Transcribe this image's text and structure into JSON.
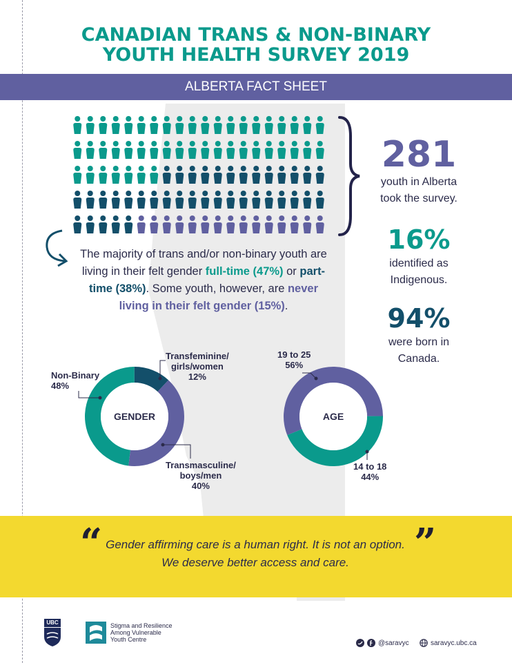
{
  "header": {
    "title_line1": "CANADIAN TRANS & NON-BINARY",
    "title_line2": "YOUTH HEALTH SURVEY 2019",
    "banner": "ALBERTA FACT SHEET"
  },
  "colors": {
    "teal": "#0a9a8c",
    "dark_teal": "#134f6a",
    "purple": "#6060a0",
    "yellow": "#f3d92f",
    "map_gray": "#ececec"
  },
  "pictogram": {
    "rows": 5,
    "cols": 20,
    "full_time_pct": 47,
    "part_time_pct": 38,
    "never_pct": 15
  },
  "stats": {
    "participants_value": "281",
    "participants_text_line1": "youth in Alberta",
    "participants_text_line2": "took the survey.",
    "indigenous_value": "16%",
    "indigenous_text_line1": "identified as",
    "indigenous_text_line2": "Indigenous.",
    "canada_value": "94%",
    "canada_text_line1": "were born in",
    "canada_text_line2": "Canada."
  },
  "felt_gender": {
    "part1": "The majority of trans and/or non-binary youth are living in their felt gender ",
    "full_time": "full-time (47%)",
    "part2": " or ",
    "part_time": "part-time (38%)",
    "part3": ". Some youth, however, are ",
    "never": "never living in their felt gender (15%)",
    "part4": "."
  },
  "chart_data": [
    {
      "type": "pie",
      "title": "GENDER",
      "categories": [
        "Non-Binary",
        "Transfeminine/girls/women",
        "Transmasculine/boys/men"
      ],
      "values": [
        48,
        12,
        40
      ],
      "label_lines": [
        [
          "Non-Binary",
          "48%"
        ],
        [
          "Transfeminine/",
          "girls/women",
          "12%"
        ],
        [
          "Transmasculine/",
          "boys/men",
          "40%"
        ]
      ]
    },
    {
      "type": "pie",
      "title": "AGE",
      "categories": [
        "19 to 25",
        "14 to 18"
      ],
      "values": [
        56,
        44
      ],
      "label_lines": [
        [
          "19 to 25",
          "56%"
        ],
        [
          "14 to 18",
          "44%"
        ]
      ]
    }
  ],
  "quote": {
    "open_mark": "“",
    "close_mark": "”",
    "line1": "Gender affirming care is a human right. It is not an option.",
    "line2": "We deserve better access and care."
  },
  "footer": {
    "ubc": "UBC",
    "sarvyc_line1": "Stigma and Resilience",
    "sarvyc_line2": "Among Vulnerable",
    "sarvyc_line3": "Youth Centre",
    "social": "@saravyc",
    "website": "saravyc.ubc.ca"
  }
}
